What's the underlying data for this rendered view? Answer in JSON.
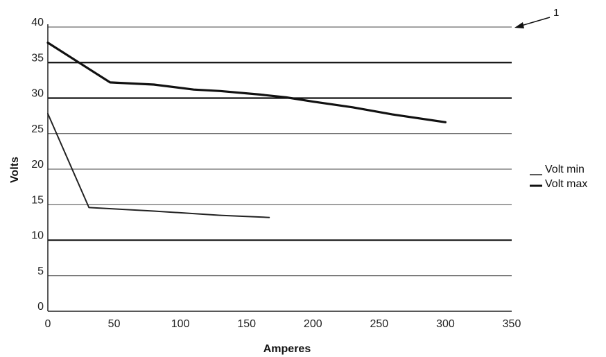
{
  "chart_data": {
    "type": "line",
    "xlabel": "Amperes",
    "ylabel": "Volts",
    "xlim": [
      0,
      350
    ],
    "ylim": [
      0,
      40
    ],
    "x_ticks": [
      0,
      50,
      100,
      150,
      200,
      250,
      300,
      350
    ],
    "y_ticks": [
      0,
      5,
      10,
      15,
      20,
      25,
      30,
      35,
      40
    ],
    "grid": "horizontal",
    "heavy_gridlines": [
      10,
      30,
      35
    ],
    "legend_position": "right",
    "annotation": "1",
    "series": [
      {
        "name": "Volt min",
        "color": "#222222",
        "weight": "thin",
        "x": [
          0,
          31,
          80,
          130,
          167
        ],
        "y": [
          27.8,
          14.6,
          14.1,
          13.5,
          13.2
        ]
      },
      {
        "name": "Volt max",
        "color": "#111111",
        "weight": "thick",
        "x": [
          0,
          47,
          80,
          110,
          130,
          160,
          180,
          200,
          230,
          260,
          300
        ],
        "y": [
          37.8,
          32.2,
          31.9,
          31.2,
          31.0,
          30.5,
          30.1,
          29.5,
          28.7,
          27.7,
          26.6
        ]
      }
    ]
  }
}
